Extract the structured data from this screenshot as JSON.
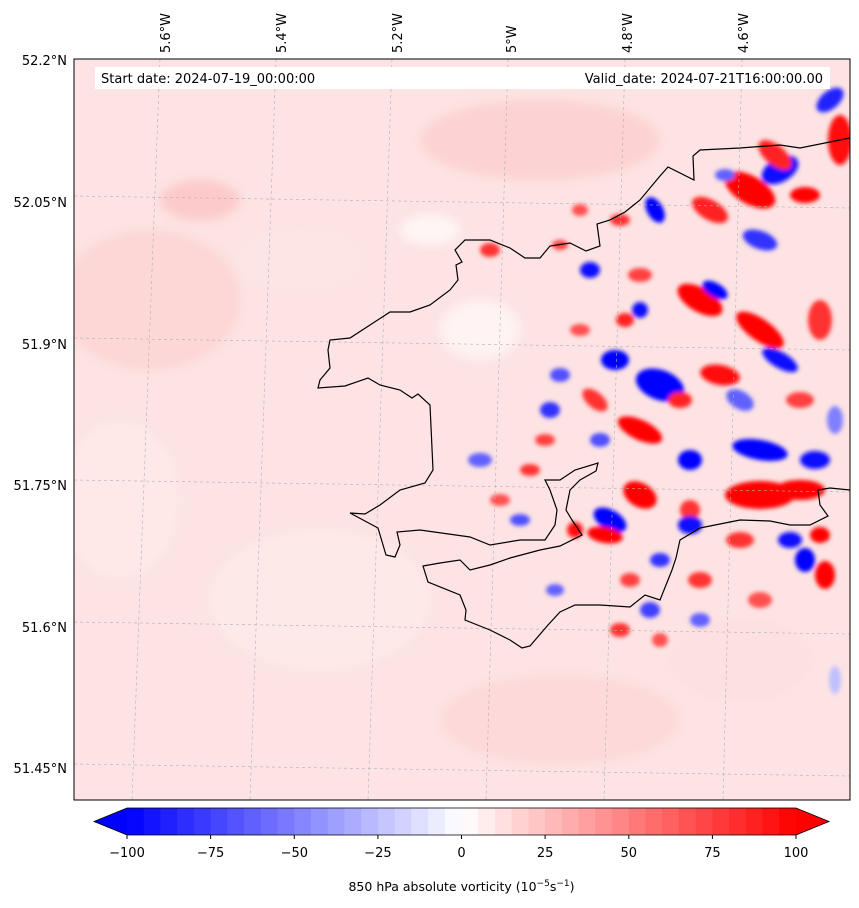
{
  "header": {
    "start_date": "Start date: 2024-07-19_00:00:00",
    "valid_date": "Valid_date: 2024-07-21T16:00:00.00"
  },
  "axes": {
    "lon_labels": [
      "5.6°W",
      "5.4°W",
      "5.2°W",
      "5°W",
      "4.8°W",
      "4.6°W"
    ],
    "lat_labels": [
      "52.2°N",
      "52.05°N",
      "51.9°N",
      "51.75°N",
      "51.6°N",
      "51.45°N"
    ]
  },
  "colorbar": {
    "ticks": [
      "−100",
      "−75",
      "−50",
      "−25",
      "0",
      "25",
      "50",
      "75",
      "100"
    ],
    "label_main": "850 hPa absolute vorticity (10",
    "label_exp1": "−5",
    "label_mid": "s",
    "label_exp2": "−1",
    "label_end": ")",
    "color_low": "#0000ff",
    "color_mid": "#ffffff",
    "color_high": "#ff0000"
  },
  "colors": {
    "background_field": "#fde3e3",
    "coastline": "#000000",
    "gridline": "#b0b0b0"
  }
}
